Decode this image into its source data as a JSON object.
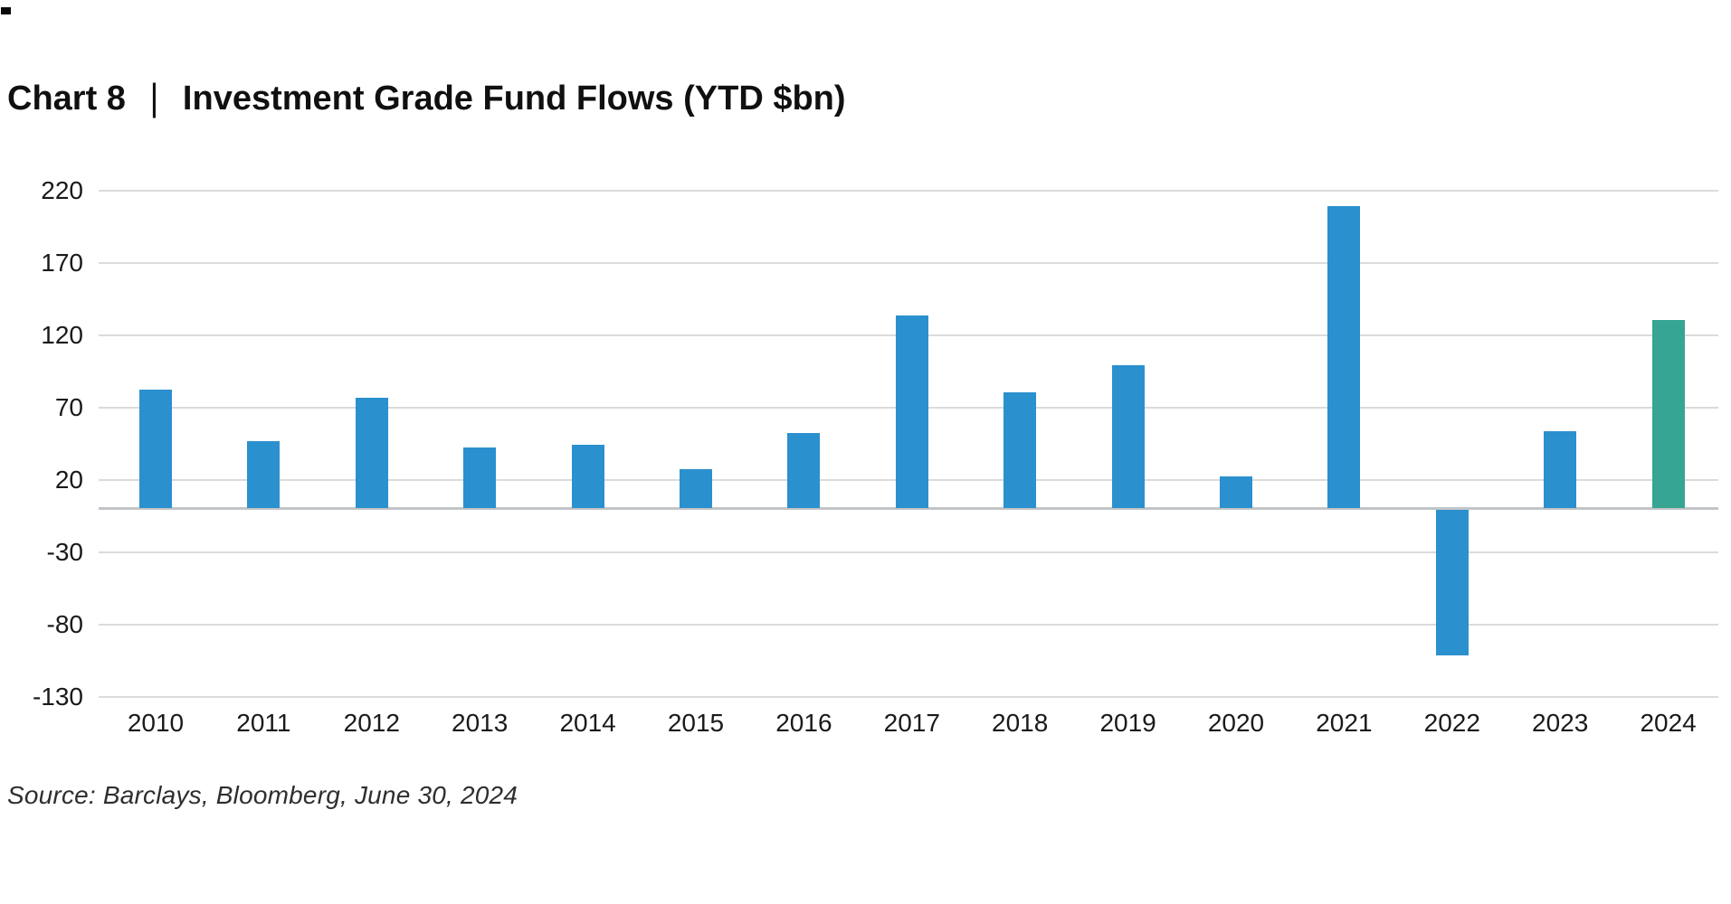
{
  "header": {
    "chart_label": "Chart 8",
    "separator": "|",
    "title": "Investment Grade Fund Flows (YTD $bn)"
  },
  "footer": {
    "source_text": "Source: Barclays, Bloomberg, June 30, 2024"
  },
  "colors": {
    "bar_blue": "#2B90CE",
    "bar_highlight_green": "#37A593",
    "gridline": "#DBDBDB",
    "zero_line": "#C2C5C7",
    "text": "#1A1A1A"
  },
  "chart_data": {
    "type": "bar",
    "title": "Chart 8 | Investment Grade Fund Flows (YTD $bn)",
    "categories": [
      "2010",
      "2011",
      "2012",
      "2013",
      "2014",
      "2015",
      "2016",
      "2017",
      "2018",
      "2019",
      "2020",
      "2021",
      "2022",
      "2023",
      "2024"
    ],
    "values": [
      82,
      46,
      76,
      42,
      44,
      27,
      52,
      133,
      80,
      99,
      22,
      209,
      -102,
      53,
      130
    ],
    "highlight_category": "2024",
    "xlabel": "",
    "ylabel": "",
    "ylim": [
      -130,
      220
    ],
    "yticks": [
      220,
      170,
      120,
      70,
      20,
      -30,
      -80,
      -130
    ],
    "grid": true,
    "legend": false
  }
}
